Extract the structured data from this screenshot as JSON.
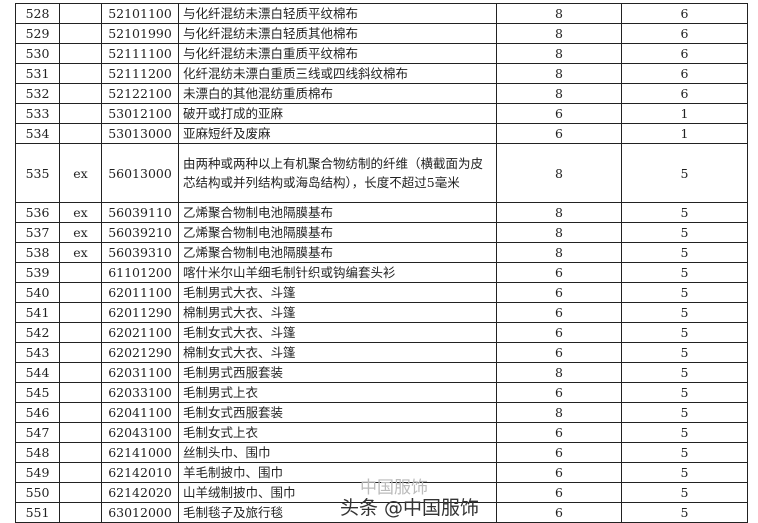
{
  "rows": [
    {
      "no": "528",
      "ex": "",
      "code": "52101100",
      "desc": "与化纤混纺未漂白轻质平纹棉布",
      "a": "8",
      "b": "6"
    },
    {
      "no": "529",
      "ex": "",
      "code": "52101990",
      "desc": "与化纤混纺未漂白轻质其他棉布",
      "a": "8",
      "b": "6"
    },
    {
      "no": "530",
      "ex": "",
      "code": "52111100",
      "desc": "与化纤混纺未漂白重质平纹棉布",
      "a": "8",
      "b": "6"
    },
    {
      "no": "531",
      "ex": "",
      "code": "52111200",
      "desc": "化纤混纺未漂白重质三线或四线斜纹棉布",
      "a": "8",
      "b": "6"
    },
    {
      "no": "532",
      "ex": "",
      "code": "52122100",
      "desc": "未漂白的其他混纺重质棉布",
      "a": "8",
      "b": "6"
    },
    {
      "no": "533",
      "ex": "",
      "code": "53012100",
      "desc": "破开或打成的亚麻",
      "a": "6",
      "b": "1"
    },
    {
      "no": "534",
      "ex": "",
      "code": "53013000",
      "desc": "亚麻短纤及废麻",
      "a": "6",
      "b": "1"
    },
    {
      "no": "535",
      "ex": "ex",
      "code": "56013000",
      "desc": "由两种或两种以上有机聚合物纺制的纤维（横截面为皮芯结构或并列结构或海岛结构），长度不超过5毫米",
      "a": "8",
      "b": "5"
    },
    {
      "no": "536",
      "ex": "ex",
      "code": "56039110",
      "desc": "乙烯聚合物制电池隔膜基布",
      "a": "8",
      "b": "5"
    },
    {
      "no": "537",
      "ex": "ex",
      "code": "56039210",
      "desc": "乙烯聚合物制电池隔膜基布",
      "a": "8",
      "b": "5"
    },
    {
      "no": "538",
      "ex": "ex",
      "code": "56039310",
      "desc": "乙烯聚合物制电池隔膜基布",
      "a": "8",
      "b": "5"
    },
    {
      "no": "539",
      "ex": "",
      "code": "61101200",
      "desc": "喀什米尔山羊细毛制针织或钩编套头衫",
      "a": "6",
      "b": "5"
    },
    {
      "no": "540",
      "ex": "",
      "code": "62011100",
      "desc": "毛制男式大衣、斗篷",
      "a": "6",
      "b": "5"
    },
    {
      "no": "541",
      "ex": "",
      "code": "62011290",
      "desc": "棉制男式大衣、斗篷",
      "a": "6",
      "b": "5"
    },
    {
      "no": "542",
      "ex": "",
      "code": "62021100",
      "desc": "毛制女式大衣、斗篷",
      "a": "6",
      "b": "5"
    },
    {
      "no": "543",
      "ex": "",
      "code": "62021290",
      "desc": "棉制女式大衣、斗篷",
      "a": "6",
      "b": "5"
    },
    {
      "no": "544",
      "ex": "",
      "code": "62031100",
      "desc": "毛制男式西服套装",
      "a": "8",
      "b": "5"
    },
    {
      "no": "545",
      "ex": "",
      "code": "62033100",
      "desc": "毛制男式上衣",
      "a": "6",
      "b": "5"
    },
    {
      "no": "546",
      "ex": "",
      "code": "62041100",
      "desc": "毛制女式西服套装",
      "a": "8",
      "b": "5"
    },
    {
      "no": "547",
      "ex": "",
      "code": "62043100",
      "desc": "毛制女式上衣",
      "a": "6",
      "b": "5"
    },
    {
      "no": "548",
      "ex": "",
      "code": "62141000",
      "desc": "丝制头巾、围巾",
      "a": "6",
      "b": "5"
    },
    {
      "no": "549",
      "ex": "",
      "code": "62142010",
      "desc": "羊毛制披巾、围巾",
      "a": "6",
      "b": "5"
    },
    {
      "no": "550",
      "ex": "",
      "code": "62142020",
      "desc": "山羊绒制披巾、围巾",
      "a": "6",
      "b": "5"
    },
    {
      "no": "551",
      "ex": "",
      "code": "63012000",
      "desc": "毛制毯子及旅行毯",
      "a": "6",
      "b": "5"
    }
  ],
  "watermark": {
    "text": "头条 @中国服饰",
    "faint_text": "中国服饰"
  }
}
